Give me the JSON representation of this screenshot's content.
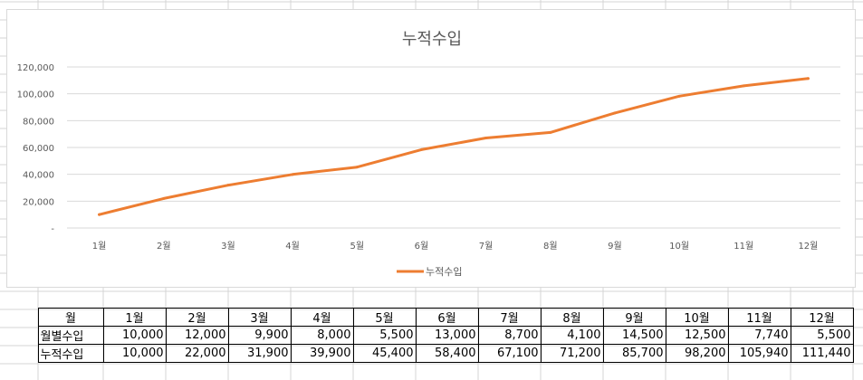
{
  "chart_data": {
    "type": "line",
    "title": "누적수입",
    "categories": [
      "1월",
      "2월",
      "3월",
      "4월",
      "5월",
      "6월",
      "7월",
      "8월",
      "9월",
      "10월",
      "11월",
      "12월"
    ],
    "series": [
      {
        "name": "누적수입",
        "values": [
          10000,
          22000,
          31900,
          39900,
          45400,
          58400,
          67100,
          71200,
          85700,
          98200,
          105940,
          111440
        ],
        "color": "#ed7d31"
      }
    ],
    "ylim": [
      0,
      120000
    ],
    "yticks": [
      "-",
      "20,000",
      "40,000",
      "60,000",
      "80,000",
      "100,000",
      "120,000"
    ],
    "grid": true,
    "legend": "bottom"
  },
  "table": {
    "header_label": "월",
    "months": [
      "1월",
      "2월",
      "3월",
      "4월",
      "5월",
      "6월",
      "7월",
      "8월",
      "9월",
      "10월",
      "11월",
      "12월"
    ],
    "rows": [
      {
        "label": "월별수입",
        "values": [
          "10,000",
          "12,000",
          "9,900",
          "8,000",
          "5,500",
          "13,000",
          "8,700",
          "4,100",
          "14,500",
          "12,500",
          "7,740",
          "5,500"
        ]
      },
      {
        "label": "누적수입",
        "values": [
          "10,000",
          "22,000",
          "31,900",
          "39,900",
          "45,400",
          "58,400",
          "67,100",
          "71,200",
          "85,700",
          "98,200",
          "105,940",
          "111,440"
        ]
      }
    ]
  }
}
